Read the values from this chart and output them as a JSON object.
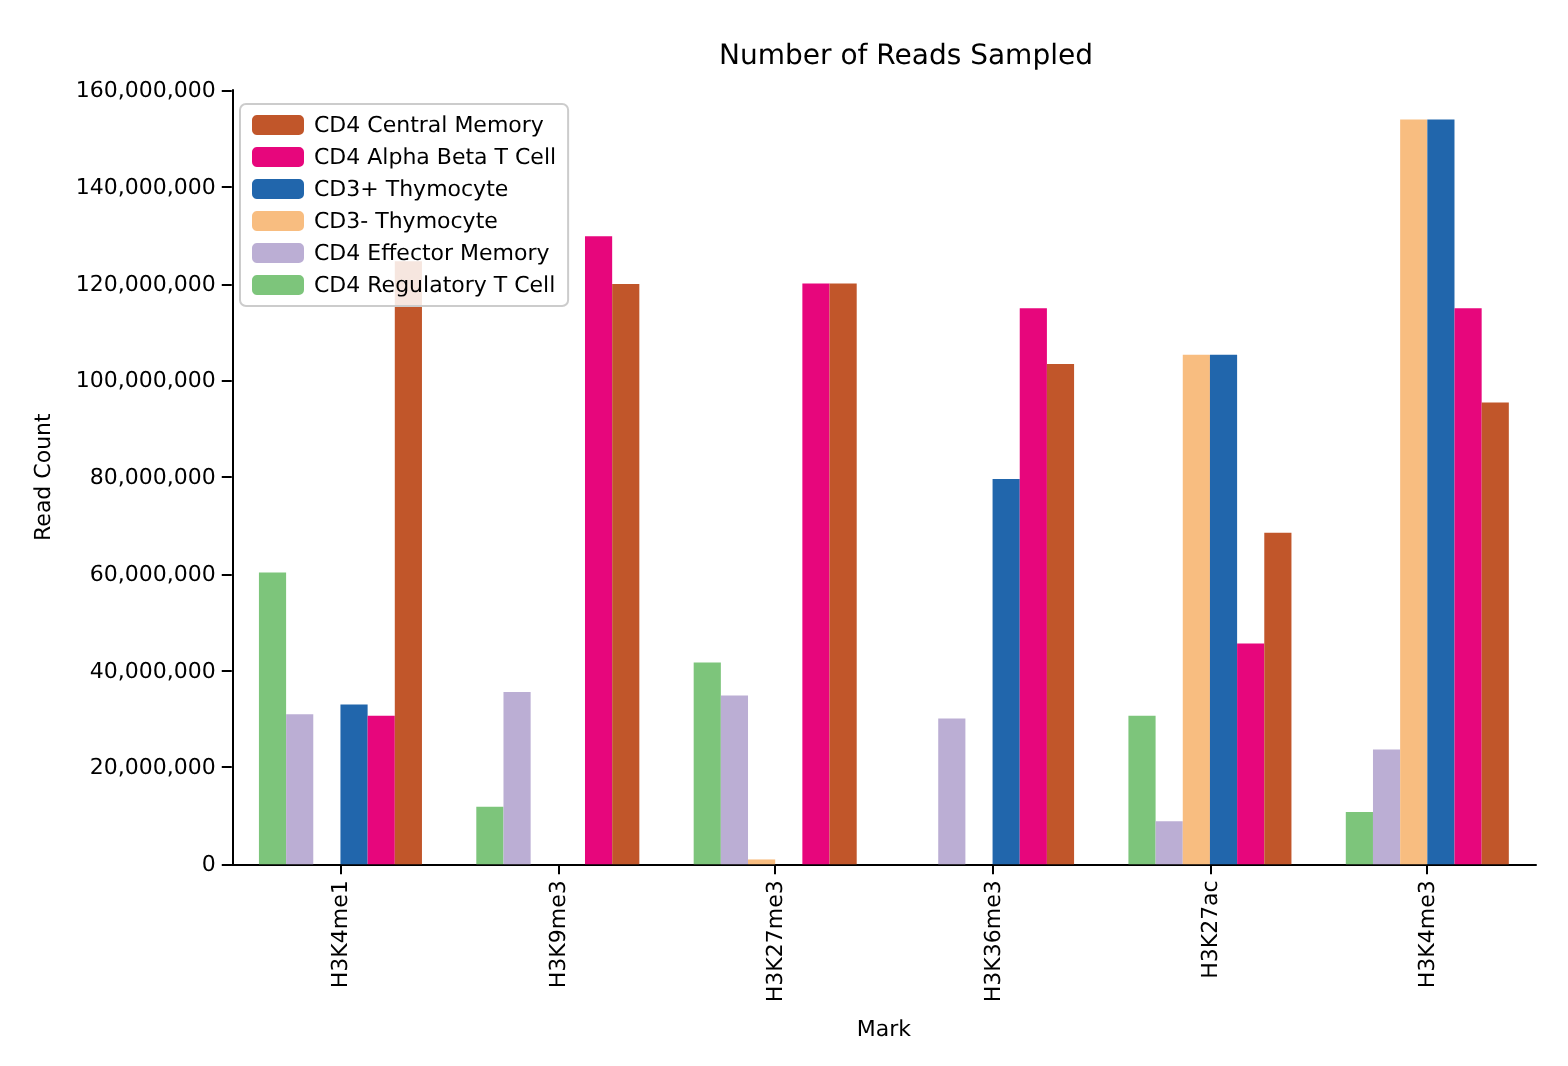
{
  "chart_data": {
    "type": "bar",
    "title": "Number of Reads Sampled",
    "xlabel": "Mark",
    "ylabel": "Read Count",
    "categories": [
      "H3K4me1",
      "H3K9me3",
      "H3K27me3",
      "H3K36me3",
      "H3K27ac",
      "H3K4me3"
    ],
    "series": [
      {
        "name": "CD4 Central Memory",
        "color": "#c1562a",
        "values": [
          124600000,
          119900000,
          120000000,
          103400000,
          68500000,
          95400000
        ]
      },
      {
        "name": "CD4 Alpha Beta T Cell",
        "color": "#e7067c",
        "values": [
          30700000,
          129800000,
          120000000,
          114900000,
          45600000,
          114900000
        ]
      },
      {
        "name": "CD3+ Thymocyte",
        "color": "#2166ac",
        "values": [
          33000000,
          0,
          0,
          79600000,
          105300000,
          153900000
        ]
      },
      {
        "name": "CD3- Thymocyte",
        "color": "#f8bd80",
        "values": [
          0,
          0,
          1000000,
          0,
          105300000,
          153900000
        ]
      },
      {
        "name": "CD4 Effector Memory",
        "color": "#bbaed4",
        "values": [
          31000000,
          35600000,
          34900000,
          30100000,
          8900000,
          23700000
        ]
      },
      {
        "name": "CD4 Regulatory T Cell",
        "color": "#7dc57b",
        "values": [
          60300000,
          11900000,
          41700000,
          0,
          30700000,
          10800000
        ]
      }
    ],
    "ylim": [
      0,
      160000000
    ],
    "yticks": [
      {
        "value": 0,
        "label": "0"
      },
      {
        "value": 20000000,
        "label": "20,000,000"
      },
      {
        "value": 40000000,
        "label": "40,000,000"
      },
      {
        "value": 60000000,
        "label": "60,000,000"
      },
      {
        "value": 80000000,
        "label": "80,000,000"
      },
      {
        "value": 100000000,
        "label": "100,000,000"
      },
      {
        "value": 120000000,
        "label": "120,000,000"
      },
      {
        "value": 140000000,
        "label": "140,000,000"
      },
      {
        "value": 160000000,
        "label": "160,000,000"
      }
    ],
    "legend": "top left",
    "grid": false
  }
}
